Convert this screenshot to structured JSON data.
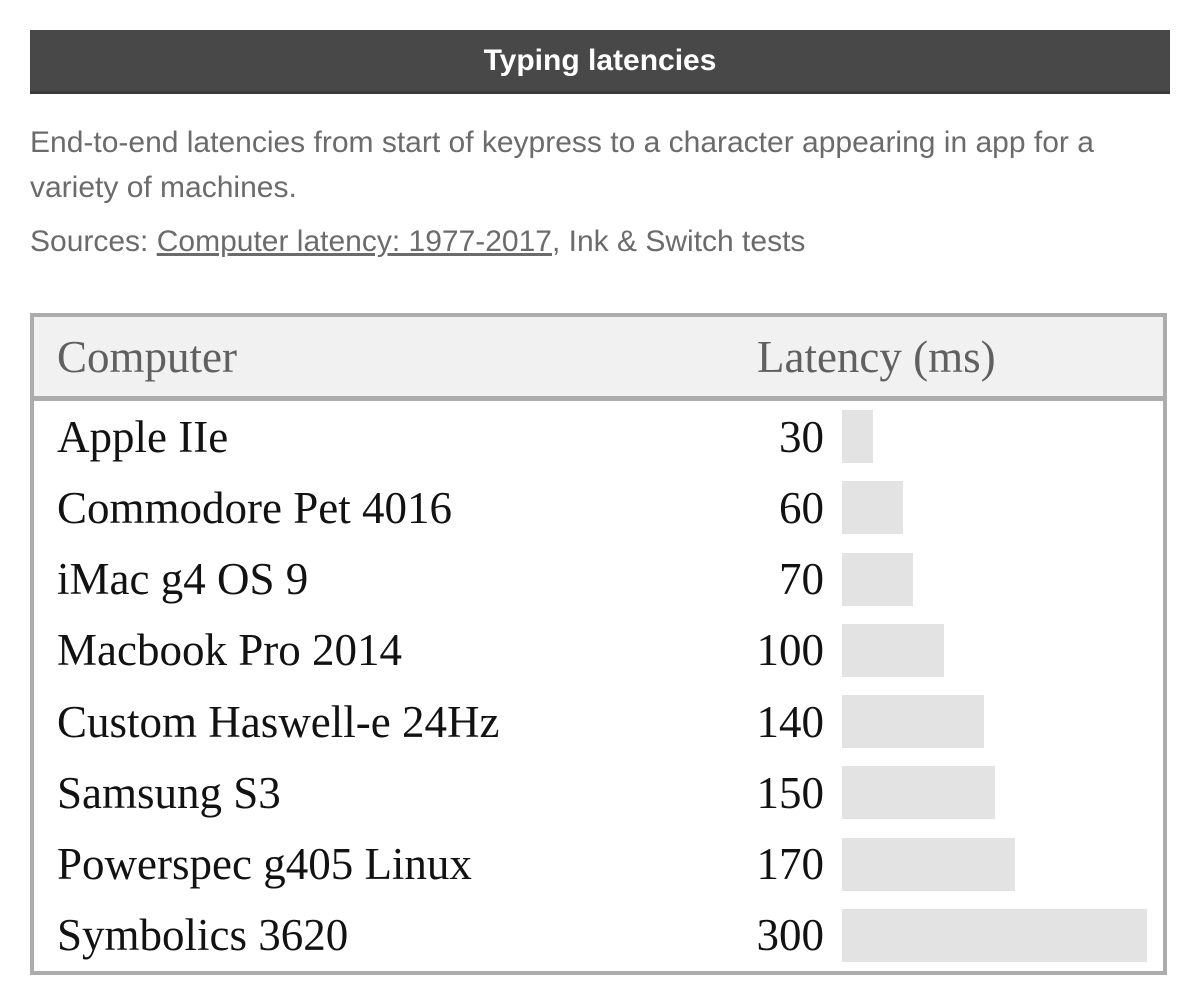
{
  "header": {
    "title": "Typing latencies"
  },
  "description": "End-to-end latencies from start of keypress to a character appearing in app for a variety of machines.",
  "sources": {
    "prefix": "Sources: ",
    "link_text": "Computer latency: 1977-2017",
    "suffix": ", Ink & Switch tests"
  },
  "table": {
    "columns": [
      "Computer",
      "Latency (ms)"
    ]
  },
  "chart_data": {
    "type": "bar",
    "orientation": "horizontal",
    "title": "Typing latencies",
    "category_label_column": "Computer",
    "value_label_column": "Latency (ms)",
    "categories": [
      "Apple IIe",
      "Commodore Pet 4016",
      "iMac g4 OS 9",
      "Macbook Pro 2014",
      "Custom Haswell-e 24Hz",
      "Samsung S3",
      "Powerspec g405 Linux",
      "Symbolics 3620"
    ],
    "values": [
      30,
      60,
      70,
      100,
      140,
      150,
      170,
      300
    ],
    "xlim": [
      0,
      300
    ],
    "bar_color": "#e3e3e3",
    "grid": false,
    "legend": false
  },
  "colors": {
    "title_bar_bg": "#484848",
    "title_text": "#ffffff",
    "body_text_gray": "#6b6b6b",
    "table_border": "#acacac",
    "table_header_bg": "#f1f1f1",
    "table_header_text": "#606060",
    "row_text": "#121212",
    "bar_fill": "#e3e3e3"
  }
}
